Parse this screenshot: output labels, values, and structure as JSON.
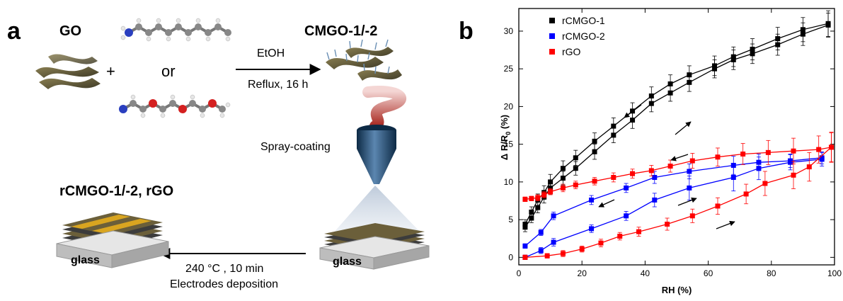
{
  "panel_a": {
    "letter": "a",
    "go_label": "GO",
    "plus": "+",
    "or": "or",
    "solvent": "EtOH",
    "condition": "Reflux, 16 h",
    "product": "CMGO-1/-2",
    "spray": "Spray-coating",
    "final_product": "rCMGO-1/-2, rGO",
    "anneal": "240 °C , 10 min",
    "electrodes": "Electrodes deposition",
    "glass_left": "glass",
    "glass_right": "glass",
    "colors": {
      "gold": "#d9a520",
      "substrate": "#cfcfcf",
      "nozzle": "#1f4e79",
      "swirl": "#b5322c"
    }
  },
  "panel_b": {
    "letter": "b"
  },
  "chart_data": {
    "type": "line",
    "xlabel": "RH (%)",
    "ylabel": "Δ R/R0 (%)",
    "ylabel_main": "Δ R/R",
    "ylabel_sub": "0",
    "ylabel_unit": " (%)",
    "xlim": [
      0,
      100
    ],
    "ylim": [
      -1,
      33
    ],
    "x_ticks": [
      "0",
      "20",
      "40",
      "60",
      "80",
      "100"
    ],
    "y_ticks": [
      "0",
      "5",
      "10",
      "15",
      "20",
      "25",
      "30"
    ],
    "legend_position": "top-left",
    "series": [
      {
        "name": "rCMGO-1",
        "color": "#000000",
        "marker": "square",
        "up": {
          "x": [
            2,
            4,
            6,
            8,
            10,
            14,
            18,
            24,
            30,
            36,
            42,
            48,
            54,
            62,
            68,
            74,
            82,
            90,
            98
          ],
          "y": [
            4.0,
            5.2,
            6.6,
            8.0,
            9.2,
            10.5,
            11.8,
            14.0,
            16.2,
            18.2,
            20.4,
            21.8,
            23.2,
            25.0,
            26.2,
            27.0,
            28.2,
            29.6,
            30.8
          ],
          "err": [
            0.6,
            0.6,
            0.7,
            0.8,
            0.8,
            0.9,
            0.9,
            1.0,
            1.0,
            1.1,
            1.1,
            1.1,
            1.2,
            1.2,
            1.3,
            1.3,
            1.4,
            1.5,
            1.6
          ]
        },
        "down": {
          "x": [
            2,
            4,
            6,
            8,
            10,
            14,
            18,
            24,
            30,
            36,
            42,
            48,
            54,
            62,
            68,
            74,
            82,
            90,
            98
          ],
          "y": [
            4.4,
            6.0,
            7.6,
            8.6,
            10.0,
            11.8,
            13.2,
            15.4,
            17.4,
            19.4,
            21.4,
            23.0,
            24.2,
            25.4,
            26.6,
            27.6,
            29.0,
            30.2,
            31.0
          ],
          "err": [
            0.6,
            0.7,
            0.8,
            0.9,
            1.0,
            1.0,
            1.0,
            1.1,
            1.1,
            1.1,
            1.2,
            1.2,
            1.2,
            1.3,
            1.3,
            1.4,
            1.5,
            1.6,
            1.7
          ]
        }
      },
      {
        "name": "rCMGO-2",
        "color": "#0000ff",
        "marker": "square",
        "up": {
          "x": [
            2,
            7,
            11,
            23,
            34,
            43,
            54,
            68,
            76,
            86,
            96
          ],
          "y": [
            0.0,
            0.9,
            2.0,
            3.8,
            5.5,
            7.6,
            9.2,
            10.6,
            11.8,
            12.6,
            13.0
          ],
          "err": [
            0.3,
            0.4,
            0.5,
            0.5,
            0.6,
            0.9,
            1.6,
            1.8,
            1.5,
            1.0,
            0.9
          ]
        },
        "down": {
          "x": [
            2,
            7,
            11,
            23,
            34,
            43,
            54,
            68,
            76,
            86,
            96
          ],
          "y": [
            1.5,
            3.3,
            5.5,
            7.6,
            9.2,
            10.6,
            11.4,
            12.2,
            12.6,
            12.8,
            13.2
          ],
          "err": [
            0.3,
            0.4,
            0.5,
            0.6,
            0.6,
            0.8,
            1.0,
            1.2,
            1.1,
            0.9,
            0.8
          ]
        }
      },
      {
        "name": "rGO",
        "color": "#ff0000",
        "marker": "square",
        "up": {
          "x": [
            2,
            9,
            14,
            20,
            26,
            32,
            38,
            47,
            55,
            63,
            72,
            78,
            87,
            92,
            99
          ],
          "y": [
            0.0,
            0.2,
            0.5,
            1.1,
            1.9,
            2.8,
            3.4,
            4.4,
            5.5,
            6.8,
            8.4,
            9.8,
            10.9,
            12.0,
            14.6
          ],
          "err": [
            0.3,
            0.3,
            0.4,
            0.4,
            0.5,
            0.5,
            0.6,
            0.8,
            0.9,
            1.1,
            1.3,
            1.6,
            1.8,
            1.9,
            2.0
          ]
        },
        "down": {
          "x": [
            2,
            4,
            6,
            8,
            10,
            14,
            18,
            24,
            30,
            36,
            42,
            48,
            55,
            63,
            71,
            79,
            87,
            95,
            99
          ],
          "y": [
            7.7,
            7.8,
            7.9,
            8.3,
            8.7,
            9.2,
            9.6,
            10.1,
            10.6,
            11.1,
            11.5,
            12.1,
            12.8,
            13.3,
            13.7,
            13.9,
            14.1,
            14.3,
            14.6
          ],
          "err": [
            0.3,
            0.3,
            0.4,
            0.4,
            0.4,
            0.5,
            0.5,
            0.5,
            0.6,
            0.6,
            0.7,
            0.8,
            1.0,
            1.2,
            1.4,
            1.6,
            1.7,
            1.8,
            1.9
          ]
        }
      }
    ]
  }
}
